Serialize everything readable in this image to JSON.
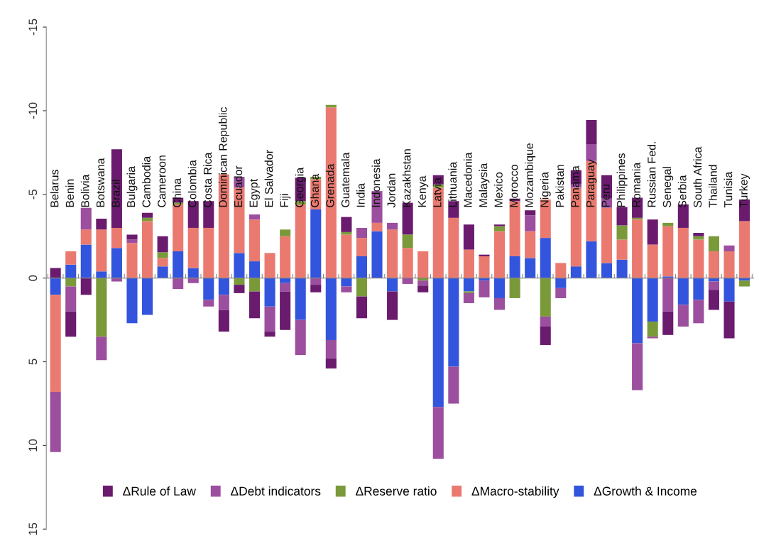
{
  "chart_data": {
    "type": "bar",
    "stacked": true,
    "categories": [
      "Belarus",
      "Benin",
      "Bolivia",
      "Botswana",
      "Brazil",
      "Bulgaria",
      "Cambodia",
      "Cameroon",
      "China",
      "Colombia",
      "Costa Rica",
      "Dominican Republic",
      "Ecuador",
      "Egypt",
      "El Salvador",
      "Fiji",
      "Georgia",
      "Ghana",
      "Grenada",
      "Guatemala",
      "India",
      "Indonesia",
      "Jordan",
      "Kazakhstan",
      "Kenya",
      "Latvia",
      "Lithuania",
      "Macedonia",
      "Malaysia",
      "Mexico",
      "Morocco",
      "Mozambique",
      "Nigeria",
      "Pakistan",
      "Panama",
      "Paraguay",
      "Peru",
      "Philippines",
      "Romania",
      "Russian Fed.",
      "Senegal",
      "Serbia",
      "South Africa",
      "Thailand",
      "Tunisia",
      "Turkey"
    ],
    "series": [
      {
        "name": "ΔGrowth & Income",
        "color": "#3355dd",
        "values": [
          1.0,
          -0.8,
          -2.0,
          -0.4,
          -1.8,
          2.7,
          2.2,
          -0.7,
          -1.6,
          -0.6,
          1.3,
          1.0,
          -1.5,
          -1.0,
          1.7,
          0.3,
          2.5,
          -4.1,
          3.7,
          0.5,
          -1.3,
          -2.8,
          0.8,
          null,
          null,
          7.7,
          5.3,
          0.8,
          0.15,
          1.2,
          -1.3,
          -1.2,
          -2.4,
          0.6,
          -0.7,
          -2.2,
          -0.9,
          -1.1,
          3.9,
          2.6,
          -0.1,
          1.6,
          1.3,
          0.2,
          1.4,
          0.15
        ]
      },
      {
        "name": "ΔMacro-stability",
        "color": "#ea7a70",
        "values": [
          5.8,
          -0.8,
          -0.9,
          -2.5,
          -1.2,
          -2.1,
          -3.4,
          -0.5,
          -2.8,
          -2.4,
          -3.0,
          -6.2,
          -3.9,
          -2.5,
          -1.5,
          -2.5,
          -4.4,
          -1.8,
          -10.2,
          -2.6,
          -1.1,
          -0.5,
          -2.9,
          -1.8,
          -1.6,
          -5.4,
          -3.6,
          -1.7,
          -1.3,
          -2.8,
          -3.3,
          -1.6,
          -2.3,
          -0.9,
          -4.7,
          -4.8,
          -3.3,
          -1.2,
          -3.5,
          -2.0,
          -3.0,
          -3.0,
          -2.3,
          -1.6,
          -1.6,
          -3.4
        ]
      },
      {
        "name": "ΔReserve ratio",
        "color": "#7a9a3a",
        "values": [
          null,
          0.5,
          null,
          3.5,
          null,
          null,
          -0.2,
          -0.35,
          -0.1,
          null,
          null,
          null,
          0.4,
          0.8,
          null,
          -0.4,
          -0.2,
          -0.15,
          -0.15,
          -0.15,
          1.1,
          null,
          null,
          -0.8,
          0.15,
          -0.2,
          null,
          0.1,
          null,
          -0.3,
          1.2,
          null,
          2.3,
          null,
          null,
          null,
          null,
          -0.85,
          -0.1,
          0.9,
          -0.2,
          null,
          -0.2,
          -0.9,
          null,
          0.35
        ]
      },
      {
        "name": "ΔDebt indicators",
        "color": "#9b4f9e",
        "values": [
          3.6,
          1.5,
          -1.3,
          1.4,
          0.2,
          -0.2,
          null,
          null,
          0.65,
          0.3,
          0.4,
          0.9,
          -0.65,
          -0.3,
          1.5,
          0.5,
          2.1,
          0.4,
          1.1,
          0.35,
          -0.6,
          -1.9,
          -0.4,
          0.35,
          0.3,
          3.1,
          2.2,
          0.6,
          1.0,
          0.7,
          null,
          -0.95,
          0.6,
          0.6,
          -0.2,
          -1.0,
          -0.55,
          null,
          2.8,
          0.1,
          2.0,
          1.3,
          1.4,
          0.5,
          -0.35,
          null
        ]
      },
      {
        "name": "ΔRule of Law",
        "color": "#6a1b6e",
        "values": [
          -0.6,
          1.5,
          1.0,
          -0.65,
          -4.7,
          -0.3,
          -0.3,
          -0.95,
          -0.3,
          -1.6,
          -1.6,
          1.3,
          0.5,
          1.6,
          0.3,
          2.3,
          -1.4,
          0.45,
          0.6,
          -0.9,
          1.3,
          null,
          1.7,
          -1.9,
          0.4,
          -0.55,
          -1.0,
          -1.5,
          -0.1,
          -0.1,
          -0.15,
          -0.3,
          1.1,
          null,
          -0.85,
          -1.45,
          -1.4,
          -1.1,
          -1.2,
          -1.5,
          1.4,
          -1.4,
          -0.2,
          1.2,
          2.2,
          -1.3
        ]
      }
    ],
    "ylim": [
      15,
      -15
    ],
    "yticks": [
      -15,
      -10,
      -5,
      0,
      5,
      10,
      15
    ],
    "legend": "bottom"
  }
}
